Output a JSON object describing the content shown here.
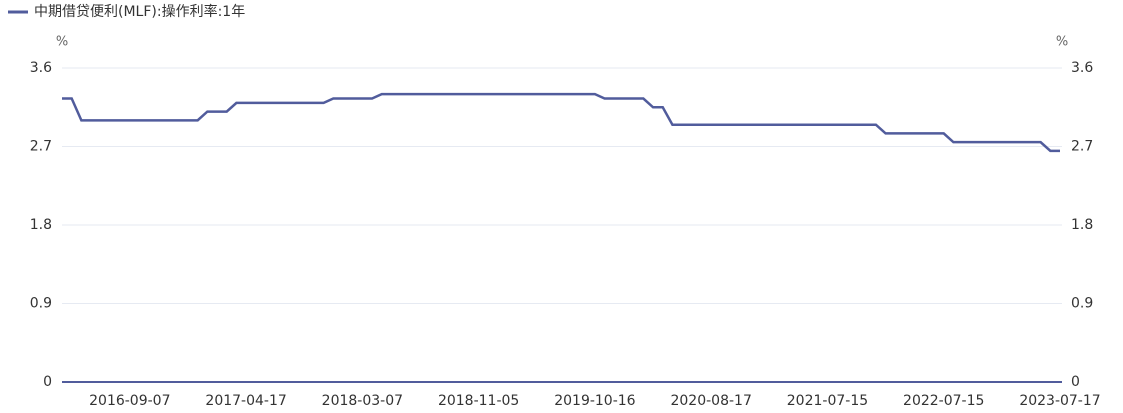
{
  "chart_data": {
    "type": "line",
    "y_unit": "%",
    "y2_unit": "%",
    "categories": [
      null,
      null,
      null,
      null,
      null,
      null,
      null,
      "2016-09-07",
      null,
      null,
      null,
      null,
      null,
      null,
      null,
      null,
      null,
      null,
      null,
      "2017-04-17",
      null,
      null,
      null,
      null,
      null,
      null,
      null,
      null,
      null,
      null,
      null,
      "2018-03-07",
      null,
      null,
      null,
      null,
      null,
      null,
      null,
      null,
      null,
      null,
      null,
      "2018-11-05",
      null,
      null,
      null,
      null,
      null,
      null,
      null,
      null,
      null,
      null,
      null,
      "2019-10-16",
      null,
      null,
      null,
      null,
      null,
      null,
      null,
      null,
      null,
      null,
      null,
      "2020-08-17",
      null,
      null,
      null,
      null,
      null,
      null,
      null,
      null,
      null,
      null,
      null,
      "2021-07-15",
      null,
      null,
      null,
      null,
      null,
      null,
      null,
      null,
      null,
      null,
      null,
      "2022-07-15",
      null,
      null,
      null,
      null,
      null,
      null,
      null,
      null,
      null,
      null,
      null,
      "2023-07-17"
    ],
    "series": [
      {
        "name": "中期借贷便利(MLF):操作利率:1年",
        "color": "#515c9c",
        "values": [
          3.25,
          3.25,
          3.0,
          3.0,
          3.0,
          3.0,
          3.0,
          3.0,
          3.0,
          3.0,
          3.0,
          3.0,
          3.0,
          3.0,
          3.0,
          3.1,
          3.1,
          3.1,
          3.2,
          3.2,
          3.2,
          3.2,
          3.2,
          3.2,
          3.2,
          3.2,
          3.2,
          3.2,
          3.25,
          3.25,
          3.25,
          3.25,
          3.25,
          3.3,
          3.3,
          3.3,
          3.3,
          3.3,
          3.3,
          3.3,
          3.3,
          3.3,
          3.3,
          3.3,
          3.3,
          3.3,
          3.3,
          3.3,
          3.3,
          3.3,
          3.3,
          3.3,
          3.3,
          3.3,
          3.3,
          3.3,
          3.25,
          3.25,
          3.25,
          3.25,
          3.25,
          3.15,
          3.15,
          2.95,
          2.95,
          2.95,
          2.95,
          2.95,
          2.95,
          2.95,
          2.95,
          2.95,
          2.95,
          2.95,
          2.95,
          2.95,
          2.95,
          2.95,
          2.95,
          2.95,
          2.95,
          2.95,
          2.95,
          2.95,
          2.95,
          2.85,
          2.85,
          2.85,
          2.85,
          2.85,
          2.85,
          2.85,
          2.75,
          2.75,
          2.75,
          2.75,
          2.75,
          2.75,
          2.75,
          2.75,
          2.75,
          2.75,
          2.65,
          2.65
        ]
      }
    ],
    "ylim": [
      0,
      3.6
    ],
    "yticks": [
      0,
      0.9,
      1.8,
      2.7,
      3.6
    ],
    "y2lim": [
      0,
      3.6
    ],
    "y2ticks": [
      0,
      0.9,
      1.8,
      2.7,
      3.6
    ],
    "grid": true,
    "legend": "top-left"
  }
}
